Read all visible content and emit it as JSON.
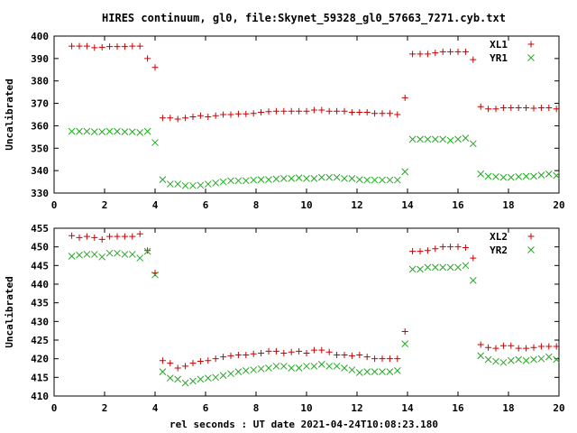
{
  "chart_data": [
    {
      "type": "scatter",
      "title": "HIRES continuum, gl0, file:Skynet_59328_gl0_57663_7271.cyb.txt",
      "xlabel": "",
      "ylabel": "Uncalibrated",
      "xlim": [
        0,
        20
      ],
      "ylim": [
        330,
        400
      ],
      "xticks": [
        0,
        2,
        4,
        6,
        8,
        10,
        12,
        14,
        16,
        18,
        20
      ],
      "yticks": [
        330,
        340,
        350,
        360,
        370,
        380,
        390,
        400
      ],
      "grid": false,
      "legend": "top-right",
      "series": [
        {
          "name": "XL1",
          "color": "#cc0000",
          "marker": "plus",
          "x": [
            0.7,
            1.0,
            1.3,
            1.6,
            1.9,
            2.2,
            2.5,
            2.8,
            3.1,
            3.4,
            3.7,
            4.0,
            4.3,
            4.6,
            4.9,
            5.2,
            5.5,
            5.8,
            6.1,
            6.4,
            6.7,
            7.0,
            7.3,
            7.6,
            7.9,
            8.2,
            8.5,
            8.8,
            9.1,
            9.4,
            9.7,
            10.0,
            10.3,
            10.6,
            10.9,
            11.2,
            11.5,
            11.8,
            12.1,
            12.4,
            12.7,
            13.0,
            13.3,
            13.6,
            13.9,
            14.2,
            14.5,
            14.8,
            15.1,
            15.4,
            15.7,
            16.0,
            16.3,
            16.6,
            16.9,
            17.2,
            17.5,
            17.8,
            18.1,
            18.4,
            18.7,
            19.0,
            19.3,
            19.6,
            19.9
          ],
          "y": [
            395.5,
            395.5,
            395.5,
            394.8,
            395.0,
            395.3,
            395.3,
            395.3,
            395.5,
            395.5,
            390.0,
            386.0,
            363.5,
            363.5,
            363.0,
            363.5,
            364.0,
            364.5,
            364.0,
            364.5,
            365.0,
            365.0,
            365.3,
            365.3,
            365.5,
            366.0,
            366.3,
            366.5,
            366.5,
            366.5,
            366.5,
            366.5,
            367.0,
            367.0,
            366.5,
            366.5,
            366.5,
            366.0,
            366.0,
            366.0,
            365.5,
            365.5,
            365.5,
            365.0,
            372.5,
            392.0,
            392.0,
            392.0,
            392.5,
            393.0,
            393.0,
            393.0,
            393.0,
            389.5,
            368.5,
            367.5,
            367.5,
            368.0,
            368.0,
            368.0,
            368.0,
            367.8,
            368.0,
            368.0,
            367.5
          ]
        },
        {
          "name": "YR1",
          "color": "#22aa22",
          "marker": "cross",
          "x": [
            0.7,
            1.0,
            1.3,
            1.6,
            1.9,
            2.2,
            2.5,
            2.8,
            3.1,
            3.4,
            3.7,
            4.0,
            4.3,
            4.6,
            4.9,
            5.2,
            5.5,
            5.8,
            6.1,
            6.4,
            6.7,
            7.0,
            7.3,
            7.6,
            7.9,
            8.2,
            8.5,
            8.8,
            9.1,
            9.4,
            9.7,
            10.0,
            10.3,
            10.6,
            10.9,
            11.2,
            11.5,
            11.8,
            12.1,
            12.4,
            12.7,
            13.0,
            13.3,
            13.6,
            13.9,
            14.2,
            14.5,
            14.8,
            15.1,
            15.4,
            15.7,
            16.0,
            16.3,
            16.6,
            16.9,
            17.2,
            17.5,
            17.8,
            18.1,
            18.4,
            18.7,
            19.0,
            19.3,
            19.6,
            19.9
          ],
          "y": [
            357.5,
            357.5,
            357.5,
            357.3,
            357.3,
            357.5,
            357.5,
            357.3,
            357.3,
            357.0,
            357.5,
            352.5,
            336.0,
            334.0,
            334.0,
            333.3,
            333.3,
            333.5,
            334.0,
            334.5,
            335.0,
            335.5,
            335.5,
            335.5,
            335.8,
            336.0,
            336.0,
            336.3,
            336.5,
            336.5,
            336.8,
            336.5,
            336.5,
            337.0,
            337.0,
            337.0,
            336.5,
            336.5,
            336.0,
            335.8,
            335.8,
            335.8,
            335.8,
            335.8,
            339.5,
            354.0,
            354.0,
            354.0,
            354.0,
            354.0,
            353.5,
            354.0,
            354.5,
            352.0,
            338.5,
            337.5,
            337.3,
            337.0,
            337.0,
            337.3,
            337.5,
            337.5,
            338.0,
            338.5,
            337.8
          ]
        }
      ]
    },
    {
      "type": "scatter",
      "title": "",
      "xlabel": "rel seconds : UT date 2021-04-24T10:08:23.180",
      "ylabel": "Uncalibrated",
      "xlim": [
        0,
        20
      ],
      "ylim": [
        410,
        455
      ],
      "xticks": [
        0,
        2,
        4,
        6,
        8,
        10,
        12,
        14,
        16,
        18,
        20
      ],
      "yticks": [
        410,
        415,
        420,
        425,
        430,
        435,
        440,
        445,
        450,
        455
      ],
      "grid": false,
      "legend": "top-right",
      "series": [
        {
          "name": "XL2",
          "color": "#cc0000",
          "marker": "plus",
          "x": [
            0.7,
            1.0,
            1.3,
            1.6,
            1.9,
            2.2,
            2.5,
            2.8,
            3.1,
            3.4,
            3.7,
            4.0,
            4.3,
            4.6,
            4.9,
            5.2,
            5.5,
            5.8,
            6.1,
            6.4,
            6.7,
            7.0,
            7.3,
            7.6,
            7.9,
            8.2,
            8.5,
            8.8,
            9.1,
            9.4,
            9.7,
            10.0,
            10.3,
            10.6,
            10.9,
            11.2,
            11.5,
            11.8,
            12.1,
            12.4,
            12.7,
            13.0,
            13.3,
            13.6,
            13.9,
            14.2,
            14.5,
            14.8,
            15.1,
            15.4,
            15.7,
            16.0,
            16.3,
            16.6,
            16.9,
            17.2,
            17.5,
            17.8,
            18.1,
            18.4,
            18.7,
            19.0,
            19.3,
            19.6,
            19.9
          ],
          "y": [
            453.0,
            452.5,
            452.8,
            452.5,
            452.0,
            452.8,
            452.8,
            452.8,
            452.8,
            453.5,
            449.0,
            443.0,
            419.5,
            418.8,
            417.5,
            418.0,
            418.8,
            419.3,
            419.5,
            420.0,
            420.5,
            420.8,
            421.0,
            421.0,
            421.3,
            421.5,
            422.0,
            422.0,
            421.5,
            421.8,
            422.0,
            421.5,
            422.3,
            422.3,
            421.8,
            421.0,
            421.0,
            420.8,
            421.0,
            420.5,
            420.0,
            420.0,
            420.0,
            420.0,
            427.3,
            448.8,
            448.8,
            449.0,
            449.5,
            450.0,
            450.0,
            450.0,
            449.8,
            447.0,
            423.8,
            423.0,
            422.8,
            423.5,
            423.5,
            422.8,
            422.8,
            423.0,
            423.3,
            423.3,
            423.3
          ]
        },
        {
          "name": "YR2",
          "color": "#22aa22",
          "marker": "cross",
          "x": [
            0.7,
            1.0,
            1.3,
            1.6,
            1.9,
            2.2,
            2.5,
            2.8,
            3.1,
            3.4,
            3.7,
            4.0,
            4.3,
            4.6,
            4.9,
            5.2,
            5.5,
            5.8,
            6.1,
            6.4,
            6.7,
            7.0,
            7.3,
            7.6,
            7.9,
            8.2,
            8.5,
            8.8,
            9.1,
            9.4,
            9.7,
            10.0,
            10.3,
            10.6,
            10.9,
            11.2,
            11.5,
            11.8,
            12.1,
            12.4,
            12.7,
            13.0,
            13.3,
            13.6,
            13.9,
            14.2,
            14.5,
            14.8,
            15.1,
            15.4,
            15.7,
            16.0,
            16.3,
            16.6,
            16.9,
            17.2,
            17.5,
            17.8,
            18.1,
            18.4,
            18.7,
            19.0,
            19.3,
            19.6,
            19.9
          ],
          "y": [
            447.5,
            447.8,
            448.0,
            448.0,
            447.3,
            448.3,
            448.3,
            448.0,
            448.0,
            447.0,
            448.8,
            442.5,
            416.5,
            414.8,
            414.5,
            413.5,
            414.0,
            414.5,
            414.8,
            415.0,
            415.5,
            416.0,
            416.5,
            416.8,
            417.0,
            417.3,
            417.5,
            418.0,
            418.0,
            417.5,
            417.5,
            418.0,
            418.0,
            418.5,
            418.0,
            418.0,
            417.5,
            417.0,
            416.3,
            416.5,
            416.5,
            416.5,
            416.5,
            416.8,
            424.0,
            444.0,
            444.0,
            444.5,
            444.5,
            444.5,
            444.5,
            444.5,
            445.0,
            441.0,
            420.8,
            419.8,
            419.3,
            419.0,
            419.5,
            419.8,
            419.5,
            419.8,
            420.0,
            420.5,
            419.8
          ]
        }
      ]
    }
  ]
}
